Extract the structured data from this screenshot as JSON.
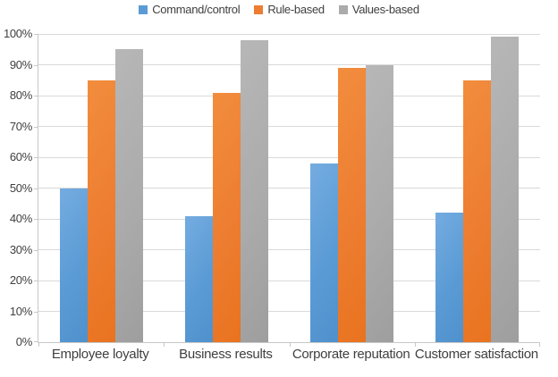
{
  "chart_data": {
    "type": "bar",
    "title": "",
    "xlabel": "",
    "ylabel": "",
    "categories": [
      "Employee loyalty",
      "Business results",
      "Corporate reputation",
      "Customer satisfaction"
    ],
    "series": [
      {
        "name": "Command/control",
        "color": "#5b9bd5",
        "color_light": "#74ace0",
        "color_dark": "#4f91cd",
        "values": [
          50,
          41,
          58,
          42
        ]
      },
      {
        "name": "Rule-based",
        "color": "#ed7d31",
        "color_light": "#f28d3e",
        "color_dark": "#e9731f",
        "values": [
          85,
          81,
          89,
          85
        ]
      },
      {
        "name": "Values-based",
        "color": "#ababab",
        "color_light": "#b7b7b7",
        "color_dark": "#9e9e9e",
        "values": [
          95,
          98,
          90,
          99
        ]
      }
    ],
    "ylim": [
      0,
      100
    ],
    "ytick_step": 10,
    "ytick_suffix": "%",
    "ytick_labels": [
      "0%",
      "10%",
      "20%",
      "30%",
      "40%",
      "50%",
      "60%",
      "70%",
      "80%",
      "90%",
      "100%"
    ],
    "grid": true,
    "legend_position": "top",
    "style_colors": {
      "gridline": "#d9d9d9",
      "axis_line": "#c8c8c8",
      "tick_label_text": "#3f3f3f",
      "legend_text": "#404040",
      "background": "#ffffff"
    }
  }
}
